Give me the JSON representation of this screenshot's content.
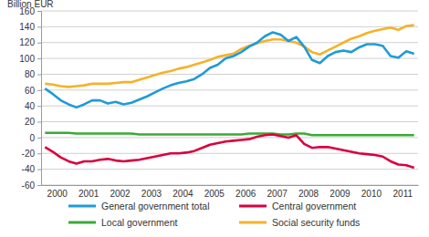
{
  "chart_data": {
    "type": "line",
    "y_label": "Billion EUR",
    "categories": [
      null,
      "2000",
      null,
      null,
      null,
      "2001",
      null,
      null,
      null,
      "2002",
      null,
      null,
      null,
      "2003",
      null,
      null,
      null,
      "2004",
      null,
      null,
      null,
      "2005",
      null,
      null,
      null,
      "2006",
      null,
      null,
      null,
      "2007",
      null,
      null,
      null,
      "2008",
      null,
      null,
      null,
      "2009",
      null,
      null,
      null,
      "2010",
      null,
      null,
      null,
      "2011",
      null,
      null
    ],
    "series": [
      {
        "name": "General government total",
        "color": "#1f9bd7",
        "values": [
          62,
          55,
          47,
          42,
          38,
          42,
          47,
          47,
          43,
          45,
          42,
          44,
          48,
          52,
          57,
          62,
          66,
          69,
          71,
          74,
          80,
          88,
          92,
          100,
          103,
          108,
          115,
          120,
          128,
          133,
          130,
          122,
          127,
          115,
          98,
          94,
          103,
          108,
          110,
          108,
          114,
          118,
          118,
          116,
          103,
          101,
          109,
          106
        ]
      },
      {
        "name": "Central government",
        "color": "#d9003f",
        "values": [
          -12,
          -18,
          -25,
          -30,
          -33,
          -30,
          -30,
          -28,
          -27,
          -29,
          -30,
          -29,
          -28,
          -26,
          -24,
          -22,
          -20,
          -20,
          -19,
          -17,
          -13,
          -9,
          -7,
          -5,
          -4,
          -3,
          -2,
          1,
          3,
          4,
          2,
          0,
          3,
          -8,
          -13,
          -12,
          -12,
          -14,
          -16,
          -18,
          -20,
          -21,
          -22,
          -24,
          -30,
          -34,
          -35,
          -38
        ]
      },
      {
        "name": "Local government",
        "color": "#3aaa35",
        "values": [
          6,
          6,
          6,
          6,
          5,
          5,
          5,
          5,
          5,
          5,
          5,
          5,
          4,
          4,
          4,
          4,
          4,
          4,
          4,
          4,
          4,
          4,
          4,
          4,
          4,
          4,
          5,
          5,
          5,
          5,
          4,
          4,
          5,
          5,
          3,
          3,
          3,
          3,
          3,
          3,
          3,
          3,
          3,
          3,
          3,
          3,
          3,
          3
        ]
      },
      {
        "name": "Social security funds",
        "color": "#f5b22a",
        "values": [
          68,
          67,
          65,
          64,
          65,
          66,
          68,
          68,
          68,
          69,
          70,
          70,
          73,
          76,
          79,
          82,
          84,
          87,
          89,
          92,
          95,
          98,
          102,
          104,
          106,
          112,
          116,
          119,
          122,
          124,
          124,
          122,
          120,
          115,
          108,
          105,
          110,
          115,
          120,
          125,
          128,
          132,
          135,
          137,
          139,
          136,
          141,
          142
        ]
      }
    ],
    "ylim": [
      -60,
      160
    ],
    "yticks": [
      -60,
      -40,
      -20,
      0,
      20,
      40,
      60,
      80,
      100,
      120,
      140,
      160
    ],
    "grid": true,
    "legend": "bottom"
  }
}
